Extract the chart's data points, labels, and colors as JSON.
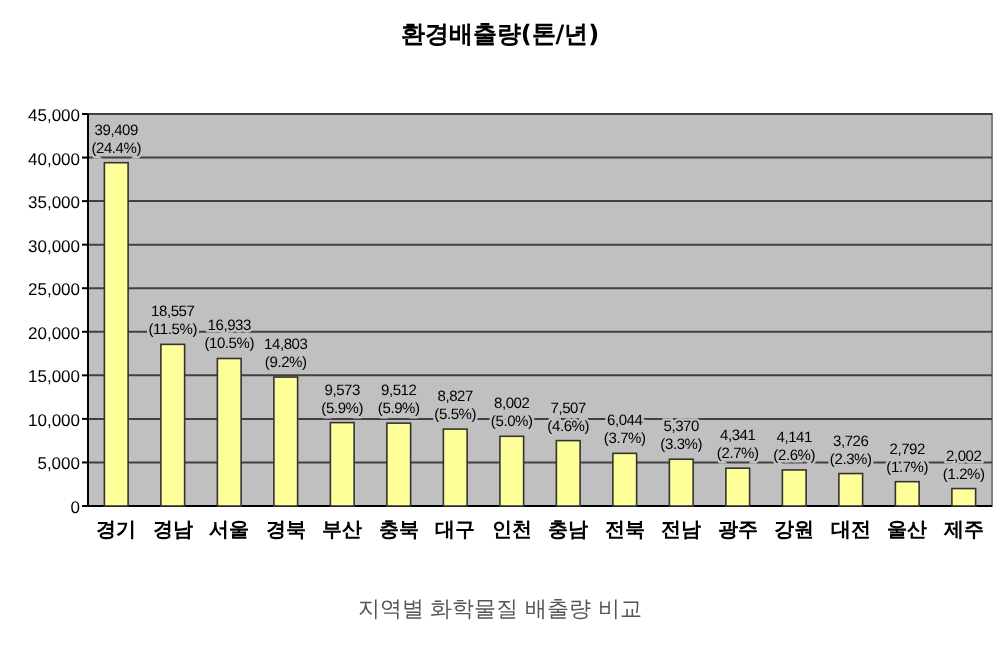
{
  "chart_data": {
    "type": "bar",
    "title": "환경배출량(톤/년)",
    "categories": [
      "경기",
      "경남",
      "서울",
      "경북",
      "부산",
      "충북",
      "대구",
      "인천",
      "충남",
      "전북",
      "전남",
      "광주",
      "강원",
      "대전",
      "울산",
      "제주"
    ],
    "values": [
      39409,
      18557,
      16933,
      14803,
      9573,
      9512,
      8827,
      8002,
      7507,
      6044,
      5370,
      4341,
      4141,
      3726,
      2792,
      2002
    ],
    "value_labels": [
      "39,409\n(24.4%)",
      "18,557\n(11.5%)",
      "16,933\n(10.5%)",
      "14,803\n(9.2%)",
      "9,573\n(5.9%)",
      "9,512\n(5.9%)",
      "8,827\n(5.5%)",
      "8,002\n(5.0%)",
      "7,507\n(4.6%)",
      "6,044\n(3.7%)",
      "5,370\n(3.3%)",
      "4,341\n(2.7%)",
      "4,141\n(2.6%)",
      "3,726\n(2.3%)",
      "2,792\n(1.7%)",
      "2,002\n(1.2%)"
    ],
    "color": "#ffff99",
    "ylim": [
      0,
      45000
    ],
    "yticks": [
      {
        "value": 0,
        "label": "0"
      },
      {
        "value": 5000,
        "label": "5,000"
      },
      {
        "value": 10000,
        "label": "10,000"
      },
      {
        "value": 15000,
        "label": "15,000"
      },
      {
        "value": 20000,
        "label": "20,000"
      },
      {
        "value": 25000,
        "label": "25,000"
      },
      {
        "value": 30000,
        "label": "30,000"
      },
      {
        "value": 35000,
        "label": "35,000"
      },
      {
        "value": 40000,
        "label": "40,000"
      },
      {
        "value": 45000,
        "label": "45,000"
      }
    ],
    "grid": "y",
    "annotations": [
      "지역별 화학물질 배출량 비교"
    ]
  }
}
